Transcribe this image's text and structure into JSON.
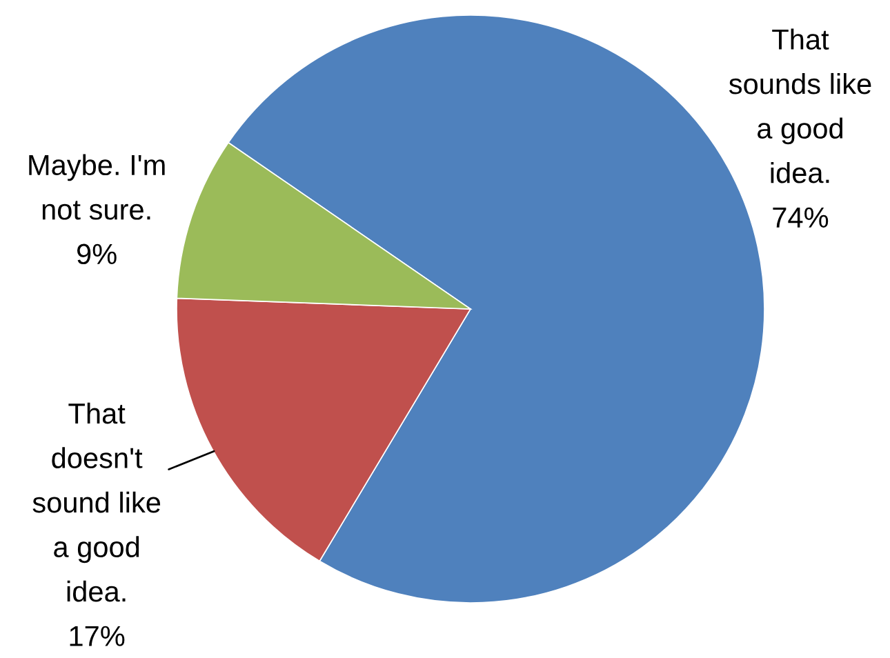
{
  "chart_data": {
    "type": "pie",
    "categories": [
      "That\nsounds like\na good\nidea.",
      "That\ndoesn't\nsound like\na good\nidea.",
      "Maybe. I'm\nnot sure."
    ],
    "values": [
      74,
      17,
      9
    ],
    "value_labels": [
      "74%",
      "17%",
      "9%"
    ],
    "colors": [
      "#4f81bd",
      "#c0504d",
      "#9bbb59"
    ],
    "legend": false
  }
}
